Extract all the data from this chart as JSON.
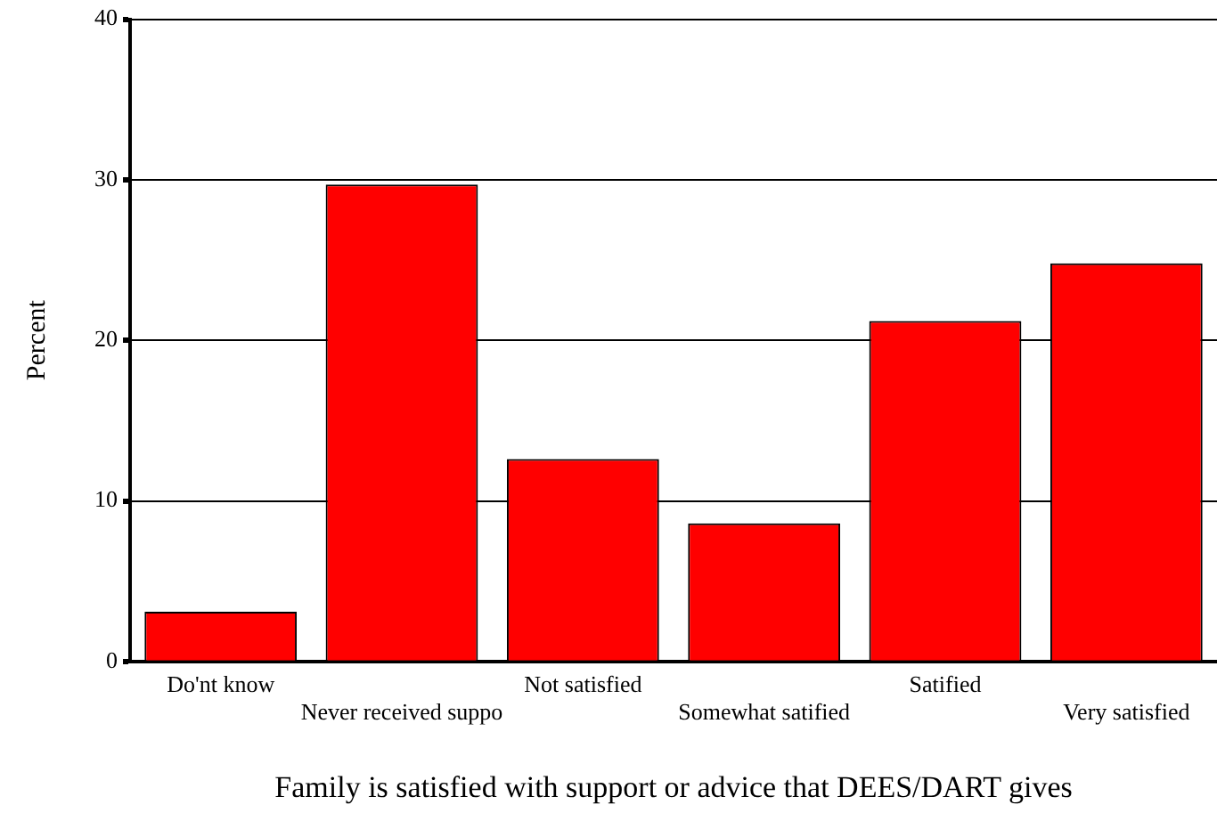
{
  "chart_data": {
    "type": "bar",
    "categories": [
      "Do'nt know",
      "Never received suppo",
      "Not satisfied",
      "Somewhat satified",
      "Satified",
      "Very satisfied"
    ],
    "values": [
      3.1,
      29.7,
      12.6,
      8.6,
      21.2,
      24.8
    ],
    "color": "#ff0000",
    "xlabel": "Family is satisfied with support or advice that DEES/DART gives",
    "ylabel": "Percent",
    "ylim": [
      0,
      40
    ],
    "yticks": [
      0,
      10,
      20,
      30,
      40
    ],
    "grid": "y",
    "legend": false
  }
}
